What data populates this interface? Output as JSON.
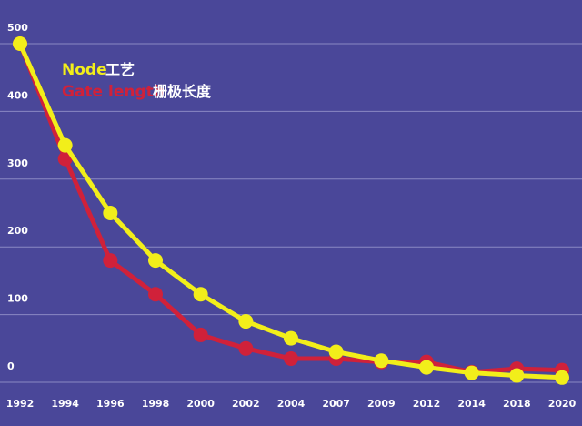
{
  "chart_data": {
    "type": "line",
    "categories": [
      "1992",
      "1994",
      "1996",
      "1998",
      "2000",
      "2002",
      "2004",
      "2007",
      "2009",
      "2012",
      "2014",
      "2018",
      "2020"
    ],
    "series": [
      {
        "name": "Gate length",
        "name_zh": "栅极长度",
        "color": "#d0213a",
        "values": [
          500,
          330,
          180,
          130,
          70,
          50,
          35,
          35,
          30,
          30,
          15,
          20,
          18
        ]
      },
      {
        "name": "Node",
        "name_zh": "工艺",
        "color": "#f2ee1a",
        "values": [
          500,
          350,
          250,
          180,
          130,
          90,
          65,
          45,
          32,
          22,
          14,
          10,
          7
        ]
      }
    ],
    "yticks": [
      500,
      400,
      300,
      200,
      100,
      0
    ],
    "ylim": [
      0,
      500
    ],
    "grid": true,
    "legend_position": "top-left"
  },
  "colors": {
    "background": "#4a4799",
    "grid": "#8a89c4"
  }
}
